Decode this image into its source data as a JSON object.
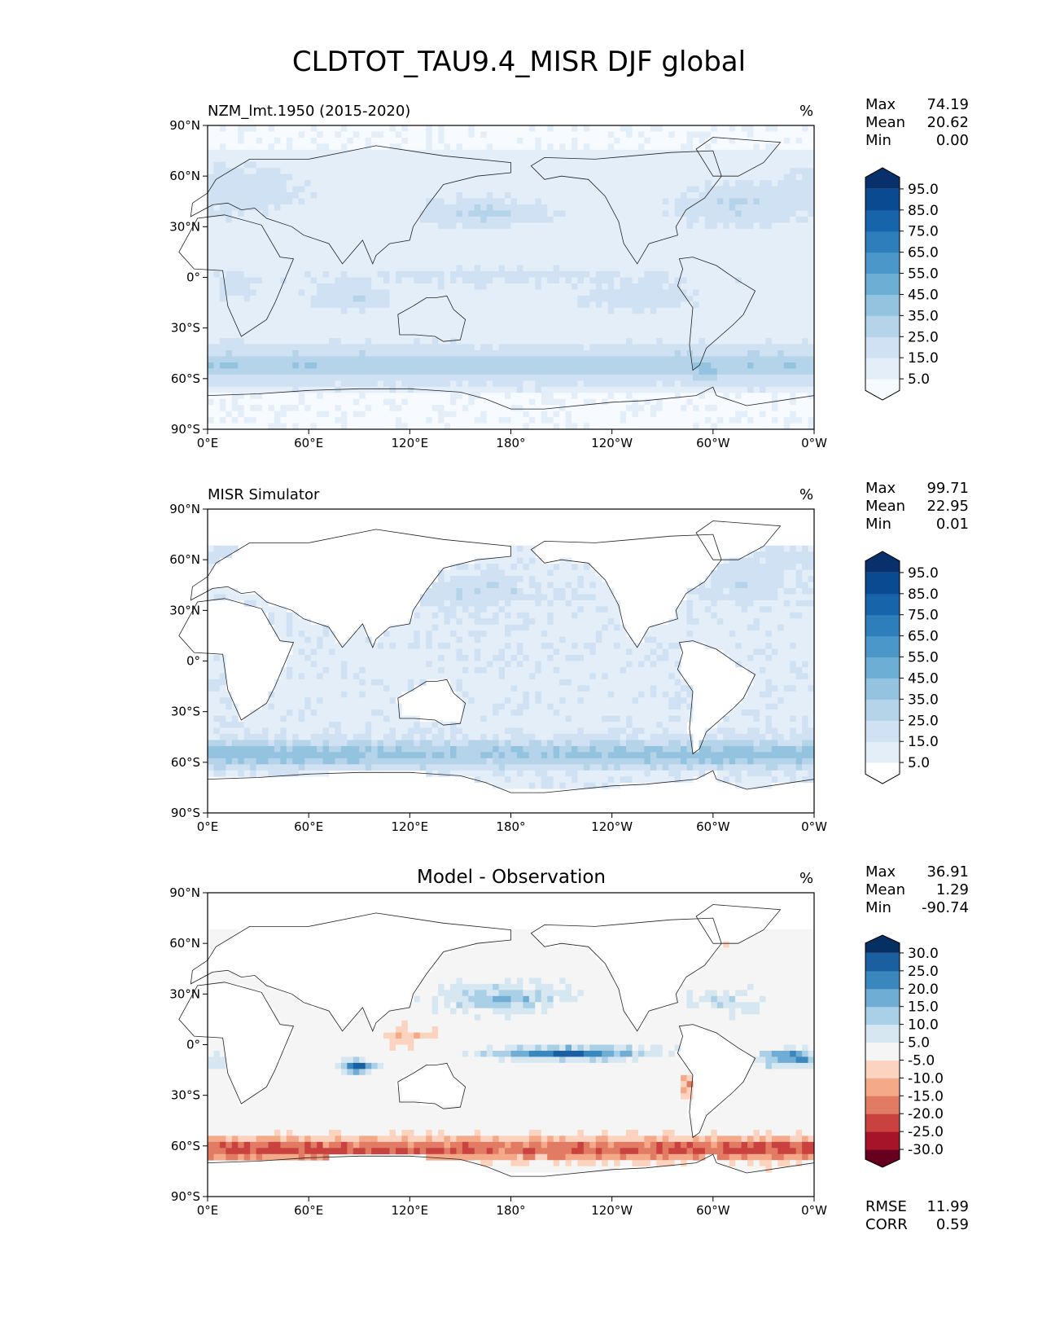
{
  "figure": {
    "title": "CLDTOT_TAU9.4_MISR DJF global"
  },
  "chart_data": [
    {
      "type": "heatmap",
      "panel_title_left": "NZM_lmt.1950 (2015-2020)",
      "panel_title_center": "",
      "units": "%",
      "x_ticks": [
        "0°E",
        "60°E",
        "120°E",
        "180°",
        "120°W",
        "60°W",
        "0°W"
      ],
      "y_ticks": [
        "90°N",
        "60°N",
        "30°N",
        "0°",
        "30°S",
        "60°S",
        "90°S"
      ],
      "stats": [
        {
          "label": "Max",
          "value": "74.19"
        },
        {
          "label": "Mean",
          "value": "20.62"
        },
        {
          "label": "Min",
          "value": "0.00"
        }
      ],
      "colorbar": {
        "labels": [
          "95.0",
          "85.0",
          "75.0",
          "65.0",
          "55.0",
          "45.0",
          "35.0",
          "25.0",
          "15.0",
          "5.0"
        ],
        "colors": [
          "#f7fbff",
          "#e3eef9",
          "#cfe1f2",
          "#b5d4e9",
          "#93c3df",
          "#6daed5",
          "#4b97c9",
          "#2f7ebc",
          "#1864aa",
          "#0a4a90",
          "#08306b"
        ]
      },
      "field": "model"
    },
    {
      "type": "heatmap",
      "panel_title_left": "MISR Simulator",
      "panel_title_center": "",
      "units": "%",
      "x_ticks": [
        "0°E",
        "60°E",
        "120°E",
        "180°",
        "120°W",
        "60°W",
        "0°W"
      ],
      "y_ticks": [
        "90°N",
        "60°N",
        "30°N",
        "0°",
        "30°S",
        "60°S",
        "90°S"
      ],
      "stats": [
        {
          "label": "Max",
          "value": "99.71"
        },
        {
          "label": "Mean",
          "value": "22.95"
        },
        {
          "label": "Min",
          "value": "0.01"
        }
      ],
      "colorbar": {
        "labels": [
          "95.0",
          "85.0",
          "75.0",
          "65.0",
          "55.0",
          "45.0",
          "35.0",
          "25.0",
          "15.0",
          "5.0"
        ],
        "colors": [
          "#ffffff",
          "#e3eef9",
          "#cfe1f2",
          "#b5d4e9",
          "#93c3df",
          "#6daed5",
          "#4b97c9",
          "#2f7ebc",
          "#1864aa",
          "#0a4a90",
          "#08306b"
        ]
      },
      "field": "obs"
    },
    {
      "type": "heatmap",
      "panel_title_left": "",
      "panel_title_center": "Model - Observation",
      "units": "%",
      "x_ticks": [
        "0°E",
        "60°E",
        "120°E",
        "180°",
        "120°W",
        "60°W",
        "0°W"
      ],
      "y_ticks": [
        "90°N",
        "60°N",
        "30°N",
        "0°",
        "30°S",
        "60°S",
        "90°S"
      ],
      "stats": [
        {
          "label": "Max",
          "value": "36.91"
        },
        {
          "label": "Mean",
          "value": "1.29"
        },
        {
          "label": "Min",
          "value": "-90.74"
        }
      ],
      "colorbar": {
        "labels": [
          "30.0",
          "25.0",
          "20.0",
          "15.0",
          "10.0",
          "5.0",
          "-5.0",
          "-10.0",
          "-15.0",
          "-20.0",
          "-25.0",
          "-30.0"
        ],
        "colors": [
          "#67001f",
          "#a51429",
          "#c9423f",
          "#e27b64",
          "#f4a988",
          "#fbd3bf",
          "#f5f5f5",
          "#d6e7f1",
          "#a9d0e6",
          "#6fadd4",
          "#3a87bd",
          "#1a5fa0",
          "#053061"
        ]
      },
      "metrics": [
        {
          "label": "RMSE",
          "value": "11.99"
        },
        {
          "label": "CORR",
          "value": "0.59"
        }
      ],
      "field": "diff"
    }
  ]
}
